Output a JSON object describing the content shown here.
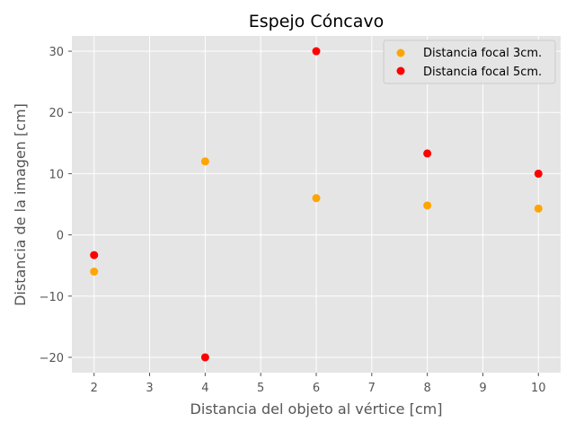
{
  "chart_data": {
    "type": "scatter",
    "title": "Espejo Cóncavo",
    "xlabel": "Distancia del objeto al vértice [cm]",
    "ylabel": "Distancia de la imagen [cm]",
    "xlim": [
      1.6,
      10.4
    ],
    "ylim": [
      -22.5,
      32.5
    ],
    "xticks": [
      2,
      3,
      4,
      5,
      6,
      7,
      8,
      9,
      10
    ],
    "yticks": [
      -20,
      -10,
      0,
      10,
      20,
      30
    ],
    "ytick_labels": [
      "−20",
      "−10",
      "0",
      "10",
      "20",
      "30"
    ],
    "grid": true,
    "background": "#e5e5e5",
    "grid_color": "#ffffff",
    "legend_position": "top-right",
    "series": [
      {
        "name": "Distancia focal 3cm.",
        "color": "#ffa500",
        "x": [
          2,
          4,
          6,
          8,
          10
        ],
        "y": [
          -6,
          12,
          6,
          4.8,
          4.3
        ]
      },
      {
        "name": "Distancia focal 5cm.",
        "color": "#ff0000",
        "x": [
          2,
          4,
          6,
          8,
          10
        ],
        "y": [
          -3.3,
          -20,
          30,
          13.3,
          10
        ]
      }
    ]
  }
}
